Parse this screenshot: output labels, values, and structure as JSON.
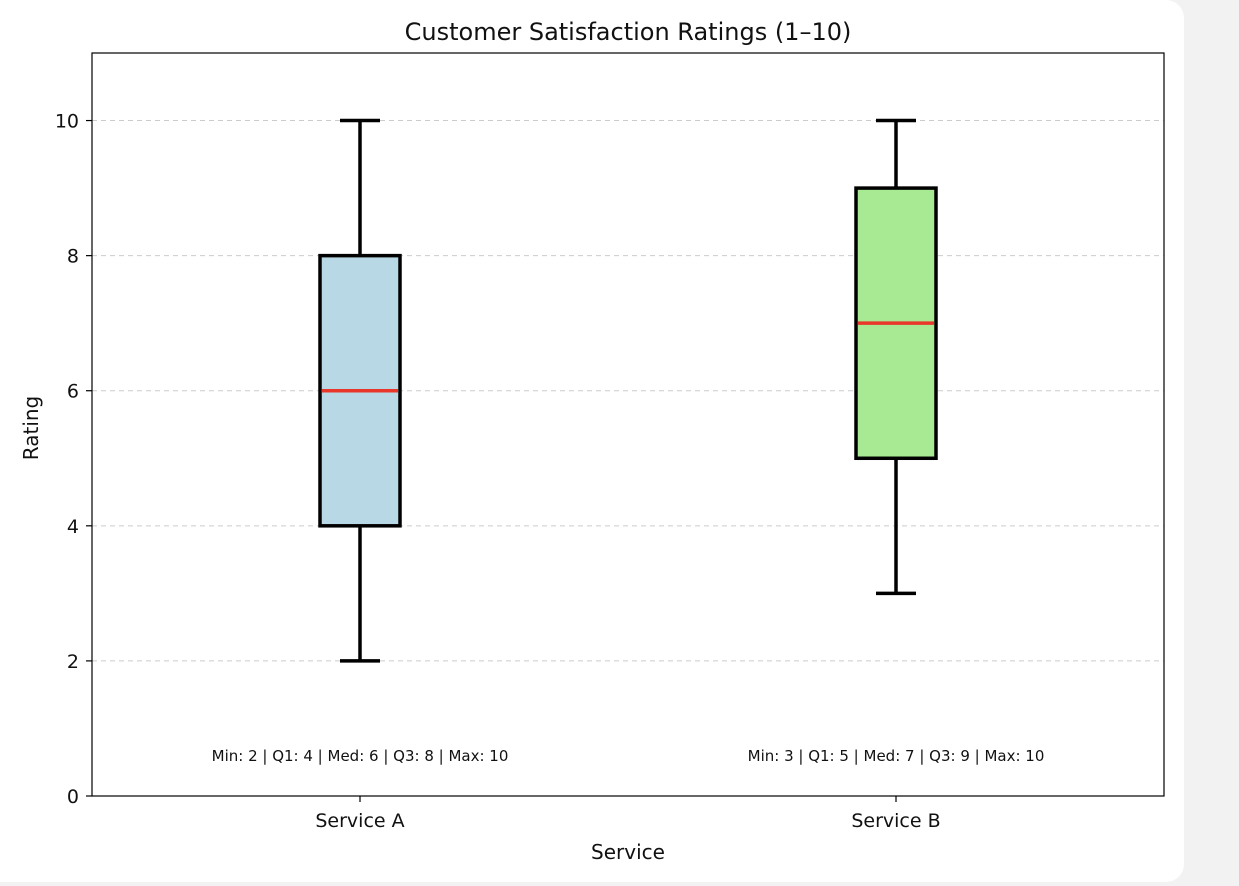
{
  "chart_data": {
    "type": "boxplot",
    "title": "Customer Satisfaction Ratings (1–10)",
    "xlabel": "Service",
    "ylabel": "Rating",
    "ylim": [
      0,
      11
    ],
    "yticks": [
      0,
      2,
      4,
      6,
      8,
      10
    ],
    "grid": "y-dashed",
    "categories": [
      "Service A",
      "Service B"
    ],
    "boxes": [
      {
        "category": "Service A",
        "min": 2,
        "q1": 4,
        "median": 6,
        "q3": 8,
        "max": 10,
        "fill": "#b8d8e5",
        "annotation": "Min: 2 | Q1: 4 | Med: 6 | Q3: 8 | Max: 10"
      },
      {
        "category": "Service B",
        "min": 3,
        "q1": 5,
        "median": 7,
        "q3": 9,
        "max": 10,
        "fill": "#a8ea94",
        "annotation": "Min: 3 | Q1: 5 | Med: 7 | Q3: 9 | Max: 10"
      }
    ],
    "colors": {
      "median": "#e8372a",
      "outline": "#000000",
      "grid": "#cccccc"
    }
  }
}
